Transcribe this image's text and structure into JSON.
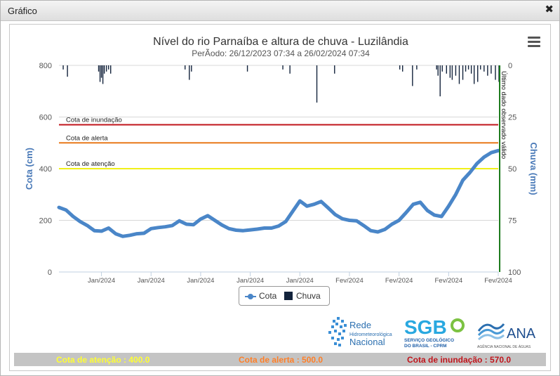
{
  "window": {
    "title": "Gráfico"
  },
  "chart_data": {
    "type": "line",
    "title": "Nível do rio Parnaíba e altura de chuva - Luzilândia",
    "subtitle": "PerÃodo: 26/12/2023 07:34 a 26/02/2024 07:34",
    "ylabel": "Cota (cm)",
    "y2label": "Chuva (mm)",
    "ylim": [
      0,
      800
    ],
    "y2lim": [
      0,
      100
    ],
    "y_ticks": [
      0,
      200,
      400,
      600,
      800
    ],
    "y2_ticks": [
      0,
      25,
      50,
      75,
      100
    ],
    "x_tick_labels": [
      "Jan/2024",
      "Jan/2024",
      "Jan/2024",
      "Jan/2024",
      "Jan/2024",
      "Fev/2024",
      "Fev/2024",
      "Fev/2024",
      "Fev/2024"
    ],
    "x_day_range": [
      0,
      62
    ],
    "x_tick_days": [
      6,
      13,
      20,
      27,
      34,
      41,
      48,
      55,
      62
    ],
    "grid": true,
    "legend_position": "bottom",
    "series": [
      {
        "name": "Cota",
        "type": "line",
        "color": "#4a86c8",
        "points": [
          [
            0,
            250
          ],
          [
            1,
            240
          ],
          [
            2,
            215
          ],
          [
            3,
            195
          ],
          [
            4,
            180
          ],
          [
            5,
            160
          ],
          [
            6,
            158
          ],
          [
            7,
            170
          ],
          [
            8,
            148
          ],
          [
            9,
            138
          ],
          [
            10,
            142
          ],
          [
            11,
            148
          ],
          [
            12,
            150
          ],
          [
            13,
            168
          ],
          [
            14,
            172
          ],
          [
            15,
            175
          ],
          [
            16,
            180
          ],
          [
            17,
            198
          ],
          [
            18,
            185
          ],
          [
            19,
            183
          ],
          [
            20,
            205
          ],
          [
            21,
            218
          ],
          [
            22,
            200
          ],
          [
            23,
            182
          ],
          [
            24,
            168
          ],
          [
            25,
            162
          ],
          [
            26,
            160
          ],
          [
            27,
            163
          ],
          [
            28,
            166
          ],
          [
            29,
            170
          ],
          [
            30,
            170
          ],
          [
            31,
            178
          ],
          [
            32,
            195
          ],
          [
            33,
            235
          ],
          [
            34,
            275
          ],
          [
            35,
            255
          ],
          [
            36,
            262
          ],
          [
            37,
            273
          ],
          [
            38,
            248
          ],
          [
            39,
            222
          ],
          [
            40,
            206
          ],
          [
            41,
            200
          ],
          [
            42,
            198
          ],
          [
            43,
            180
          ],
          [
            44,
            160
          ],
          [
            45,
            155
          ],
          [
            46,
            165
          ],
          [
            47,
            185
          ],
          [
            48,
            200
          ],
          [
            49,
            230
          ],
          [
            50,
            262
          ],
          [
            51,
            270
          ],
          [
            52,
            238
          ],
          [
            53,
            220
          ],
          [
            54,
            215
          ],
          [
            55,
            255
          ],
          [
            56,
            300
          ],
          [
            57,
            355
          ],
          [
            58,
            385
          ],
          [
            59,
            420
          ],
          [
            60,
            445
          ],
          [
            61,
            462
          ],
          [
            62,
            470
          ]
        ]
      },
      {
        "name": "Chuva",
        "type": "bar",
        "color": "#13233c",
        "points": [
          [
            0.6,
            2
          ],
          [
            1.2,
            5.5
          ],
          [
            5.6,
            3
          ],
          [
            5.8,
            8
          ],
          [
            6.0,
            6
          ],
          [
            6.2,
            9
          ],
          [
            6.4,
            4
          ],
          [
            6.7,
            3
          ],
          [
            7.0,
            2
          ],
          [
            7.3,
            4
          ],
          [
            17.8,
            2
          ],
          [
            18.4,
            7
          ],
          [
            18.7,
            3
          ],
          [
            26.6,
            3
          ],
          [
            31.6,
            2
          ],
          [
            32.6,
            4
          ],
          [
            36.4,
            18
          ],
          [
            38.9,
            4
          ],
          [
            48.1,
            2
          ],
          [
            48.5,
            3
          ],
          [
            49.9,
            10
          ],
          [
            50.5,
            2
          ],
          [
            53.3,
            2
          ],
          [
            53.5,
            5
          ],
          [
            53.8,
            15
          ],
          [
            54.1,
            3
          ],
          [
            54.7,
            4
          ],
          [
            55.2,
            6
          ],
          [
            55.5,
            7
          ],
          [
            56.0,
            5
          ],
          [
            56.5,
            9
          ],
          [
            57.0,
            7
          ],
          [
            57.4,
            3
          ],
          [
            57.8,
            2
          ],
          [
            58.2,
            4
          ],
          [
            58.6,
            9
          ],
          [
            59.1,
            8
          ],
          [
            59.5,
            2
          ],
          [
            60.0,
            3
          ],
          [
            60.5,
            5
          ],
          [
            61.0,
            4
          ],
          [
            61.6,
            7
          ],
          [
            62.1,
            8
          ]
        ]
      }
    ],
    "plot_lines": [
      {
        "label": "Cota de inundação",
        "value": 570,
        "color": "#c0141b"
      },
      {
        "label": "Cota de alerta",
        "value": 500,
        "color": "#e8791a"
      },
      {
        "label": "Cota de atenção",
        "value": 400,
        "color": "#f0f019"
      }
    ],
    "vertical_marker": {
      "label": "Último dado observado válido",
      "day": 62.2,
      "color": "#1b7a1b"
    }
  },
  "legend": {
    "items": [
      {
        "label": "Cota",
        "color": "#4a86c8"
      },
      {
        "label": "Chuva",
        "color": "#13233c"
      }
    ]
  },
  "logos": {
    "rede": {
      "line1": "Rede",
      "line2": "Hidrometeorológica",
      "line3": "Nacional"
    },
    "sgb": {
      "mark": "SGB",
      "line1": "SERVIÇO GEOLÓGICO",
      "line2": "DO BRASIL - CPRM"
    },
    "ana": {
      "mark": "ANA",
      "line1": "AGÊNCIA NACIONAL DE ÁGUAS"
    }
  },
  "footer": {
    "atencao": "Cota de atenção : 400.0",
    "alerta": "Cota de alerta : 500.0",
    "inundacao": "Cota de inundação : 570.0"
  }
}
